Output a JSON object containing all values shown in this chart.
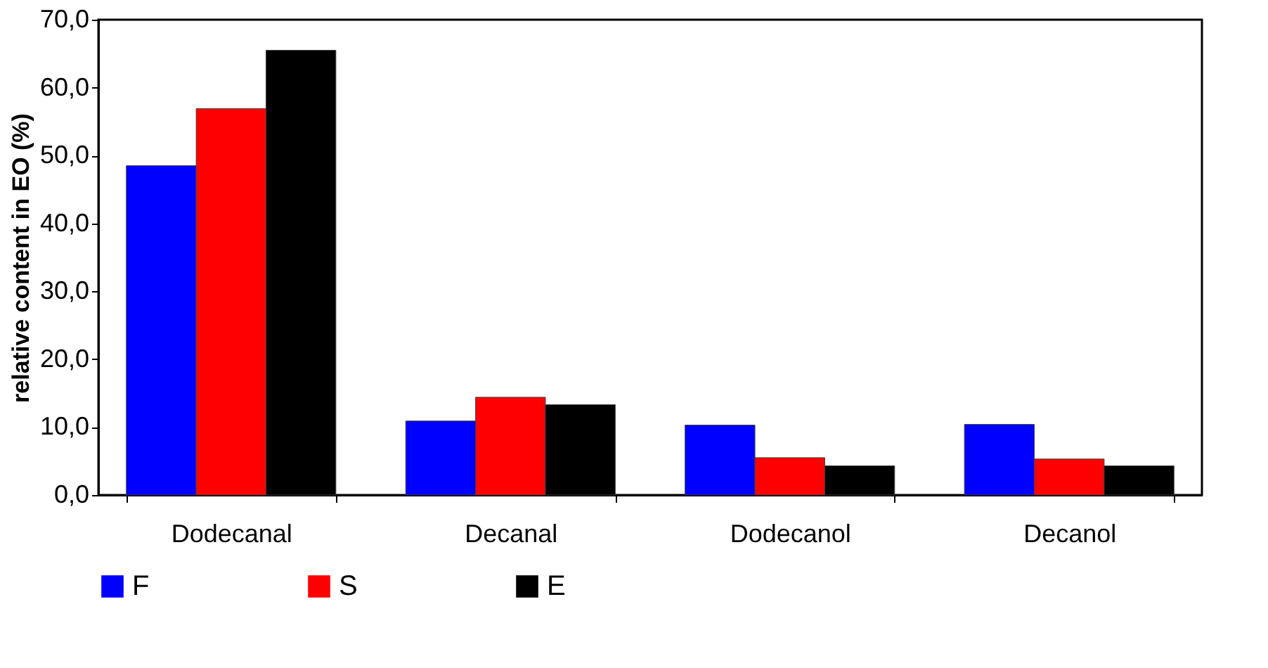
{
  "chart_data": {
    "type": "bar",
    "ylabel": "relative content in EO (%)",
    "categories": [
      "Dodecanal",
      "Decanal",
      "Dodecanol",
      "Decanol"
    ],
    "series": [
      {
        "name": "F",
        "color": "#0000ff",
        "values": [
          48.5,
          10.9,
          10.3,
          10.4
        ]
      },
      {
        "name": "S",
        "color": "#ff0000",
        "values": [
          56.9,
          14.4,
          5.5,
          5.3
        ]
      },
      {
        "name": "E",
        "color": "#000000",
        "values": [
          65.5,
          13.3,
          4.3,
          4.3
        ]
      }
    ],
    "ylim": [
      0,
      70
    ],
    "yticks": [
      {
        "value": 0,
        "label": "0,0"
      },
      {
        "value": 10,
        "label": "10,0"
      },
      {
        "value": 20,
        "label": "20,0"
      },
      {
        "value": 30,
        "label": "30,0"
      },
      {
        "value": 40,
        "label": "40,0"
      },
      {
        "value": 50,
        "label": "50,0"
      },
      {
        "value": 60,
        "label": "60,0"
      },
      {
        "value": 70,
        "label": "70,0"
      }
    ],
    "grid": false,
    "legend": "bottom"
  }
}
